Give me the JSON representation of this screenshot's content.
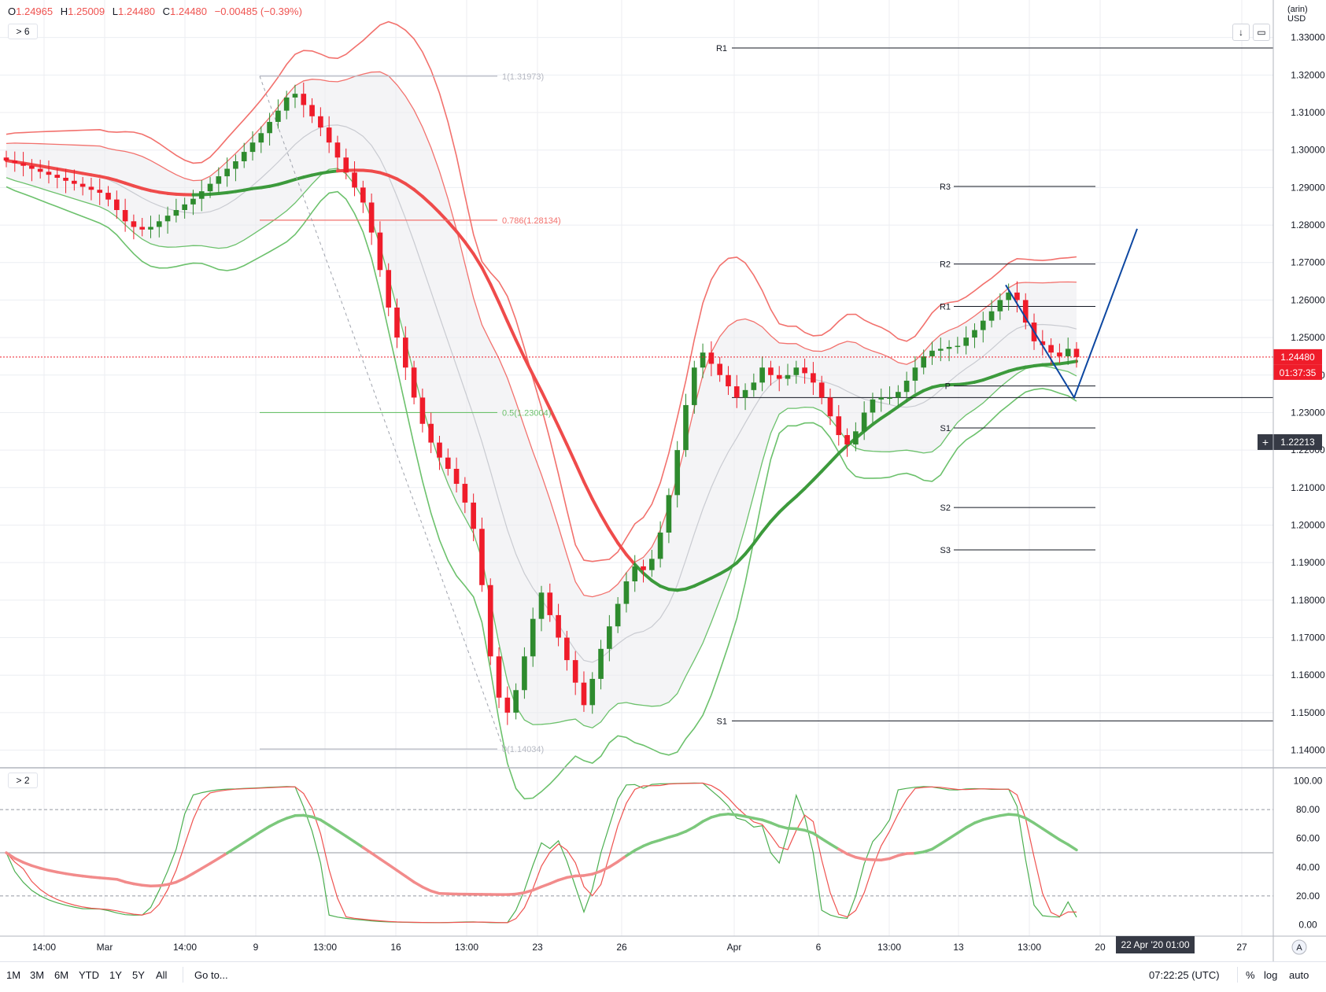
{
  "ohlc": {
    "o_key": "O",
    "o_val": "1.24965",
    "h_key": "H",
    "h_val": "1.25009",
    "l_key": "L",
    "l_val": "1.24480",
    "c_key": "C",
    "c_val": "1.24480",
    "chg": "−0.00485 (−0.39%)"
  },
  "main_legend_label": "6",
  "osc_legend_label": "2",
  "currency_top": "(arin)",
  "currency": "USD",
  "price_axis": {
    "ticks": [
      "1.33000",
      "1.32000",
      "1.31000",
      "1.30000",
      "1.29000",
      "1.28000",
      "1.27000",
      "1.26000",
      "1.25000",
      "1.24000",
      "1.23000",
      "1.22000",
      "1.21000",
      "1.20000",
      "1.19000",
      "1.18000",
      "1.17000",
      "1.16000",
      "1.15000",
      "1.14000"
    ],
    "last_price": "1.24480",
    "countdown": "01:37:35",
    "crosshair_price": "1.22213"
  },
  "osc_axis": {
    "ticks": [
      "100.00",
      "80.00",
      "60.00",
      "40.00",
      "20.00",
      "0.00"
    ]
  },
  "time_axis": {
    "labels": [
      "14:00",
      "Mar",
      "14:00",
      "9",
      "13:00",
      "16",
      "13:00",
      "23",
      "26",
      "Apr",
      "6",
      "13:00",
      "13",
      "13:00",
      "20",
      "27"
    ],
    "crosshair_time": "22 Apr '20  01:00",
    "badge": "A"
  },
  "fib": [
    {
      "label": "1(1.31973)",
      "price": 1.3197
    },
    {
      "label": "0.786(1.28134)",
      "price": 1.2813
    },
    {
      "label": "0.5(1.23004)",
      "price": 1.23
    },
    {
      "label": "0(1.14034)",
      "price": 1.1403
    }
  ],
  "pivots_long": [
    {
      "label": "R1",
      "price": 1.3272
    },
    {
      "label": "S1",
      "price": 1.1478
    }
  ],
  "pivots_short": [
    {
      "label": "R3",
      "price": 1.2903
    },
    {
      "label": "R2",
      "price": 1.2696
    },
    {
      "label": "R1",
      "price": 1.2583
    },
    {
      "label": "P",
      "price": 1.2371
    },
    {
      "label": "S1",
      "price": 1.2259
    },
    {
      "label": "S2",
      "price": 1.2047
    },
    {
      "label": "S3",
      "price": 1.1934
    }
  ],
  "bottom_bar": {
    "ranges": [
      "1M",
      "3M",
      "6M",
      "YTD",
      "1Y",
      "5Y",
      "All"
    ],
    "goto": "Go to...",
    "clock": "07:22:25 (UTC)",
    "pct": "%",
    "log": "log",
    "auto": "auto"
  },
  "colors": {
    "up": "#2e8b2e",
    "down": "#ef1c2a",
    "red_band": "#f2716d",
    "green_band": "#6cc16c",
    "pattern": "#0d47a1"
  },
  "chart_data": {
    "type": "candlestick",
    "symbol_quote": "USD",
    "ylim": [
      1.1355,
      1.34
    ],
    "close": [
      1.2972,
      1.2965,
      1.2958,
      1.295,
      1.2942,
      1.2934,
      1.2926,
      1.2918,
      1.291,
      1.2902,
      1.2894,
      1.2886,
      1.2868,
      1.284,
      1.281,
      1.2795,
      1.2788,
      1.2795,
      1.281,
      1.2825,
      1.284,
      1.2855,
      1.287,
      1.289,
      1.291,
      1.293,
      1.295,
      1.297,
      1.2995,
      1.302,
      1.3045,
      1.3075,
      1.3105,
      1.314,
      1.315,
      1.312,
      1.309,
      1.306,
      1.302,
      1.298,
      1.294,
      1.29,
      1.286,
      1.278,
      1.268,
      1.258,
      1.25,
      1.242,
      1.234,
      1.227,
      1.222,
      1.218,
      1.215,
      1.211,
      1.206,
      1.199,
      1.184,
      1.165,
      1.154,
      1.15,
      1.156,
      1.165,
      1.175,
      1.182,
      1.176,
      1.17,
      1.164,
      1.158,
      1.152,
      1.159,
      1.167,
      1.173,
      1.179,
      1.185,
      1.189,
      1.188,
      1.191,
      1.198,
      1.208,
      1.22,
      1.232,
      1.242,
      1.246,
      1.243,
      1.24,
      1.237,
      1.234,
      1.236,
      1.238,
      1.242,
      1.24,
      1.239,
      1.24,
      1.242,
      1.2405,
      1.238,
      1.234,
      1.229,
      1.224,
      1.2215,
      1.225,
      1.23,
      1.2335,
      1.234,
      1.234,
      1.2355,
      1.2385,
      1.242,
      1.245,
      1.2465,
      1.247,
      1.2475,
      1.2478,
      1.25,
      1.252,
      1.2545,
      1.257,
      1.26,
      1.262,
      1.26,
      1.254,
      1.249,
      1.248,
      1.246,
      1.245,
      1.247,
      1.2448
    ],
    "candles_shown": 127,
    "oscillator": {
      "name_label": "2",
      "ylim": [
        -8,
        108
      ],
      "levels": [
        80,
        50,
        20
      ]
    },
    "annotations": [
      "fib retracement",
      "pivot points",
      "bollinger bands",
      "zigzag pattern"
    ]
  }
}
